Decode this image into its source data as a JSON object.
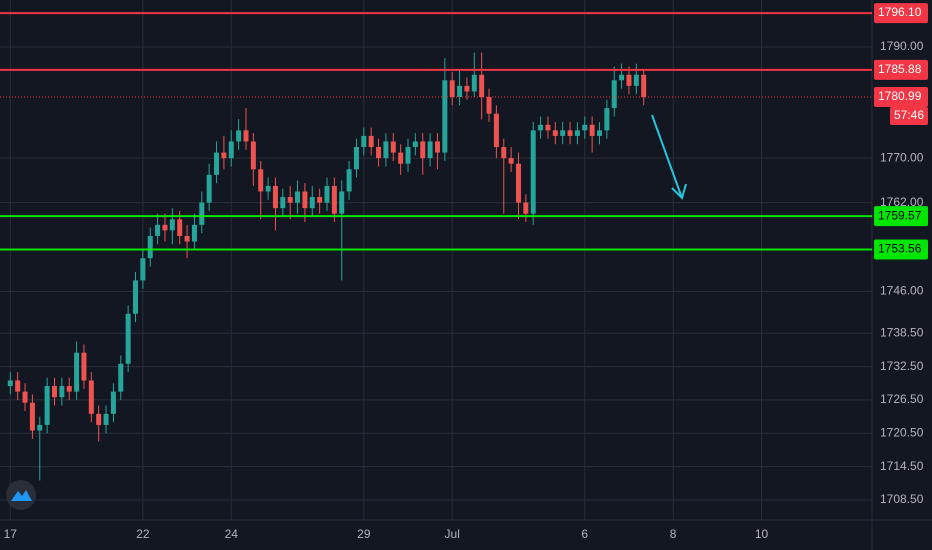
{
  "chart_data": {
    "type": "candlestick",
    "ylim": [
      1704.9,
      1798.45
    ],
    "yticks": [
      {
        "value": 1790,
        "label": "1790.00"
      },
      {
        "value": 1770,
        "label": "1770.00"
      },
      {
        "value": 1762,
        "label": "1762.00"
      },
      {
        "value": 1746,
        "label": "1746.00"
      },
      {
        "value": 1738.5,
        "label": "1738.50"
      },
      {
        "value": 1732.5,
        "label": "1732.50"
      },
      {
        "value": 1726.5,
        "label": "1726.50"
      },
      {
        "value": 1720.5,
        "label": "1720.50"
      },
      {
        "value": 1714.5,
        "label": "1714.50"
      },
      {
        "value": 1708.5,
        "label": "1708.50"
      }
    ],
    "xlim": [
      -1.4,
      117
    ],
    "xticks": [
      {
        "value": 0,
        "label": "17"
      },
      {
        "value": 18,
        "label": "22"
      },
      {
        "value": 30,
        "label": "24"
      },
      {
        "value": 48,
        "label": "29"
      },
      {
        "value": 60,
        "label": "Jul"
      },
      {
        "value": 78,
        "label": "6"
      },
      {
        "value": 90,
        "label": "8"
      },
      {
        "value": 102,
        "label": "10"
      }
    ],
    "grid": true,
    "up_color": "#26a69a",
    "down_color": "#ef5350",
    "open": [
      1729,
      1730,
      1728,
      1726,
      1721,
      1722,
      1729,
      1727,
      1729,
      1728,
      1735,
      1730,
      1724,
      1722,
      1724,
      1728,
      1733,
      1742,
      1748,
      1752,
      1756,
      1758,
      1757,
      1759,
      1756,
      1755,
      1758,
      1762,
      1767,
      1771,
      1770,
      1773,
      1775,
      1773,
      1768,
      1764,
      1765,
      1761,
      1763,
      1762,
      1764,
      1761,
      1763,
      1762,
      1765,
      1760,
      1764,
      1768,
      1772,
      1774,
      1772,
      1770,
      1773,
      1771,
      1769,
      1772,
      1773,
      1770,
      1773,
      1771,
      1784,
      1781,
      1783,
      1782,
      1785,
      1781,
      1778,
      1772,
      1770,
      1769,
      1762,
      1760,
      1775,
      1776,
      1775,
      1774,
      1775,
      1774,
      1775,
      1776,
      1774,
      1775,
      1779,
      1784,
      1785,
      1783,
      1785
    ],
    "high": [
      1731.5,
      1731.5,
      1729.5,
      1727.5,
      1723.5,
      1730.5,
      1730.5,
      1730.5,
      1730.5,
      1737,
      1736.5,
      1731.5,
      1725.5,
      1725.5,
      1729.5,
      1734.5,
      1743.5,
      1749.5,
      1753.5,
      1757.5,
      1760,
      1760,
      1761,
      1760.5,
      1758,
      1760,
      1764,
      1769,
      1773,
      1774,
      1775,
      1777,
      1779,
      1774.5,
      1769.5,
      1766.5,
      1766.5,
      1764.5,
      1765,
      1766,
      1765.5,
      1765,
      1764.5,
      1766.5,
      1766.5,
      1766,
      1769.5,
      1773.5,
      1775.5,
      1775.5,
      1773.5,
      1774.5,
      1774.5,
      1772.5,
      1773.5,
      1774.5,
      1774.5,
      1774.5,
      1774.5,
      1788,
      1785.5,
      1786,
      1784.5,
      1789,
      1789,
      1782.5,
      1779.5,
      1773.5,
      1772,
      1771,
      1763.5,
      1776.5,
      1777.5,
      1777.5,
      1776.5,
      1776.5,
      1776.5,
      1776.5,
      1777.5,
      1777.5,
      1776.5,
      1780.5,
      1786.5,
      1787,
      1786.5,
      1787,
      1786
    ],
    "low": [
      1727.5,
      1726.5,
      1724.5,
      1719.5,
      1712,
      1720.5,
      1725.5,
      1725.5,
      1726.5,
      1726.5,
      1728.5,
      1722.5,
      1719,
      1720.5,
      1722.5,
      1726.5,
      1731.5,
      1740.5,
      1746.5,
      1750.5,
      1754.5,
      1755,
      1754.5,
      1754.5,
      1752,
      1753.5,
      1756.5,
      1760.5,
      1765.5,
      1768,
      1768.5,
      1771.5,
      1771.5,
      1765,
      1759,
      1762.5,
      1757,
      1759.5,
      1759,
      1760,
      1758.5,
      1759.5,
      1760,
      1760.5,
      1758.5,
      1748,
      1762.5,
      1766.5,
      1770.5,
      1770.5,
      1768.5,
      1768.5,
      1769.5,
      1767,
      1767.5,
      1770.5,
      1767,
      1768.5,
      1768,
      1769.5,
      1779.5,
      1779.5,
      1780.5,
      1781,
      1777,
      1776.5,
      1770,
      1760,
      1767.5,
      1759,
      1758.5,
      1758,
      1773.5,
      1773.5,
      1772.5,
      1772.5,
      1772.5,
      1772.5,
      1773.5,
      1771,
      1772.5,
      1773.5,
      1777.5,
      1782.5,
      1781.5,
      1781.5,
      1779.5
    ],
    "close": [
      1730,
      1728,
      1726,
      1721,
      1722,
      1729,
      1727,
      1729,
      1728,
      1735,
      1730,
      1724,
      1722,
      1724,
      1728,
      1733,
      1742,
      1748,
      1752,
      1756,
      1758,
      1757,
      1759,
      1756,
      1755,
      1758,
      1762,
      1767,
      1771,
      1770,
      1773,
      1775,
      1773,
      1768,
      1764,
      1765,
      1761,
      1763,
      1762,
      1764,
      1761,
      1763,
      1762,
      1765,
      1760,
      1764,
      1768,
      1772,
      1774,
      1772,
      1770,
      1773,
      1771,
      1769,
      1772,
      1773,
      1770,
      1773,
      1771,
      1784,
      1781,
      1783,
      1782,
      1785,
      1781,
      1778,
      1772,
      1770,
      1769,
      1762,
      1760,
      1775,
      1776,
      1775,
      1774,
      1775,
      1774,
      1775,
      1776,
      1774,
      1775,
      1779,
      1784,
      1785,
      1783,
      1785,
      1781
    ],
    "levels": [
      {
        "value": 1796.1,
        "label": "1796.10",
        "color": "#f23645"
      },
      {
        "value": 1785.88,
        "label": "1785.88",
        "color": "#f23645"
      },
      {
        "value": 1759.57,
        "label": "1759.57",
        "color": "#00e600"
      },
      {
        "value": 1753.56,
        "label": "1753.56",
        "color": "#00e600"
      }
    ],
    "price_line": {
      "value": 1780.99,
      "countdown": "57:46",
      "color": "#f23645"
    }
  }
}
